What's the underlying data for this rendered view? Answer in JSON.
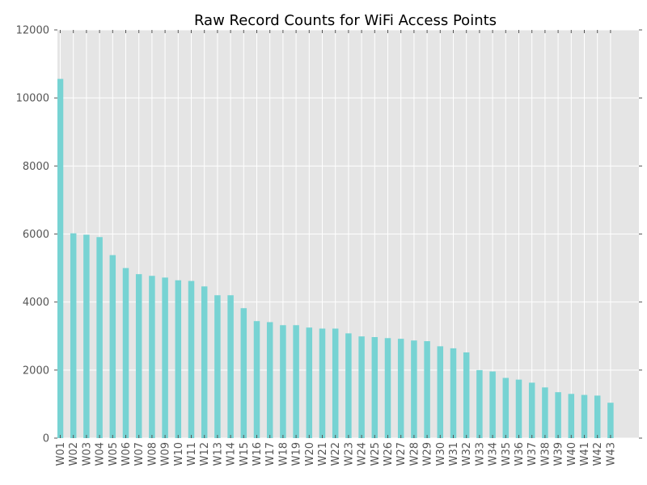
{
  "chart_data": {
    "type": "bar",
    "title": "Raw Record Counts for WiFi Access Points",
    "xlabel": "",
    "ylabel": "",
    "ylim": [
      0,
      12000
    ],
    "yticks": [
      0,
      2000,
      4000,
      6000,
      8000,
      10000,
      12000
    ],
    "grid": true,
    "legend": "none",
    "categories": [
      "W01",
      "W02",
      "W03",
      "W04",
      "W05",
      "W06",
      "W07",
      "W08",
      "W09",
      "W10",
      "W11",
      "W12",
      "W13",
      "W14",
      "W15",
      "W16",
      "W17",
      "W18",
      "W19",
      "W20",
      "W21",
      "W22",
      "W23",
      "W24",
      "W25",
      "W26",
      "W27",
      "W28",
      "W29",
      "W30",
      "W31",
      "W32",
      "W33",
      "W34",
      "W35",
      "W36",
      "W37",
      "W38",
      "W39",
      "W40",
      "W41",
      "W42",
      "W43"
    ],
    "values": [
      10560,
      6020,
      5980,
      5910,
      5380,
      5000,
      4820,
      4770,
      4720,
      4640,
      4620,
      4460,
      4200,
      4200,
      3820,
      3440,
      3410,
      3320,
      3320,
      3250,
      3220,
      3220,
      3080,
      2990,
      2970,
      2940,
      2920,
      2870,
      2850,
      2700,
      2640,
      2520,
      2000,
      1960,
      1770,
      1720,
      1630,
      1490,
      1350,
      1300,
      1270,
      1250,
      1040
    ],
    "colors": {
      "bar": "#77d3d3",
      "plot_background": "#e5e5e5",
      "grid": "#ffffff"
    }
  }
}
